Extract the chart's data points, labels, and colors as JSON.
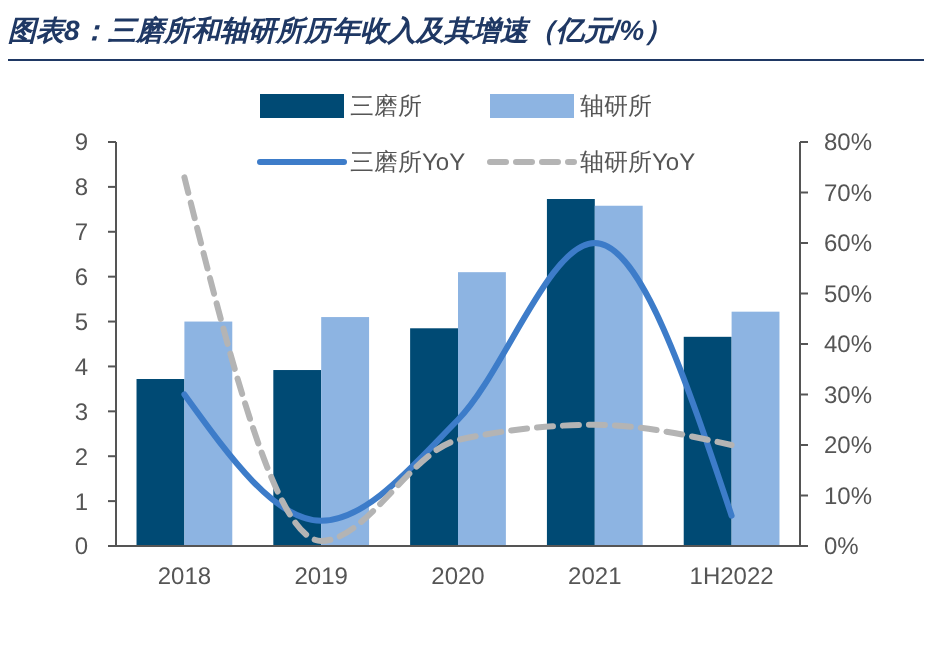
{
  "chart_data": {
    "type": "bar",
    "title": "图表8：三磨所和轴研所历年收入及其增速（亿元/%）",
    "categories": [
      "2018",
      "2019",
      "2020",
      "2021",
      "1H2022"
    ],
    "series": [
      {
        "name": "三磨所",
        "color": "#004a74",
        "values": [
          3.72,
          3.92,
          4.85,
          7.73,
          4.66
        ]
      },
      {
        "name": "轴研所",
        "color": "#8db4e2",
        "values": [
          5.0,
          5.1,
          6.1,
          7.58,
          5.22
        ]
      },
      {
        "name": "三磨所YoY",
        "type": "line",
        "axis": "y2",
        "color": "#3d7cc9",
        "line_style": "solid",
        "values": [
          30,
          5,
          25,
          60,
          6
        ]
      },
      {
        "name": "轴研所YoY",
        "type": "line",
        "axis": "y2",
        "color": "#b4b4b4",
        "line_style": "dashed",
        "values": [
          73,
          1,
          21,
          24,
          20
        ]
      }
    ],
    "ylim": [
      0,
      9
    ],
    "yticks": [
      0,
      1,
      2,
      3,
      4,
      5,
      6,
      7,
      8,
      9
    ],
    "y2lim": [
      0,
      80
    ],
    "y2ticks": [
      {
        "value": 0,
        "label": "0%"
      },
      {
        "value": 10,
        "label": "10%"
      },
      {
        "value": 20,
        "label": "20%"
      },
      {
        "value": 30,
        "label": "30%"
      },
      {
        "value": 40,
        "label": "40%"
      },
      {
        "value": 50,
        "label": "50%"
      },
      {
        "value": 60,
        "label": "60%"
      },
      {
        "value": 70,
        "label": "70%"
      },
      {
        "value": 80,
        "label": "80%"
      }
    ],
    "legend": "top",
    "grid": false
  }
}
